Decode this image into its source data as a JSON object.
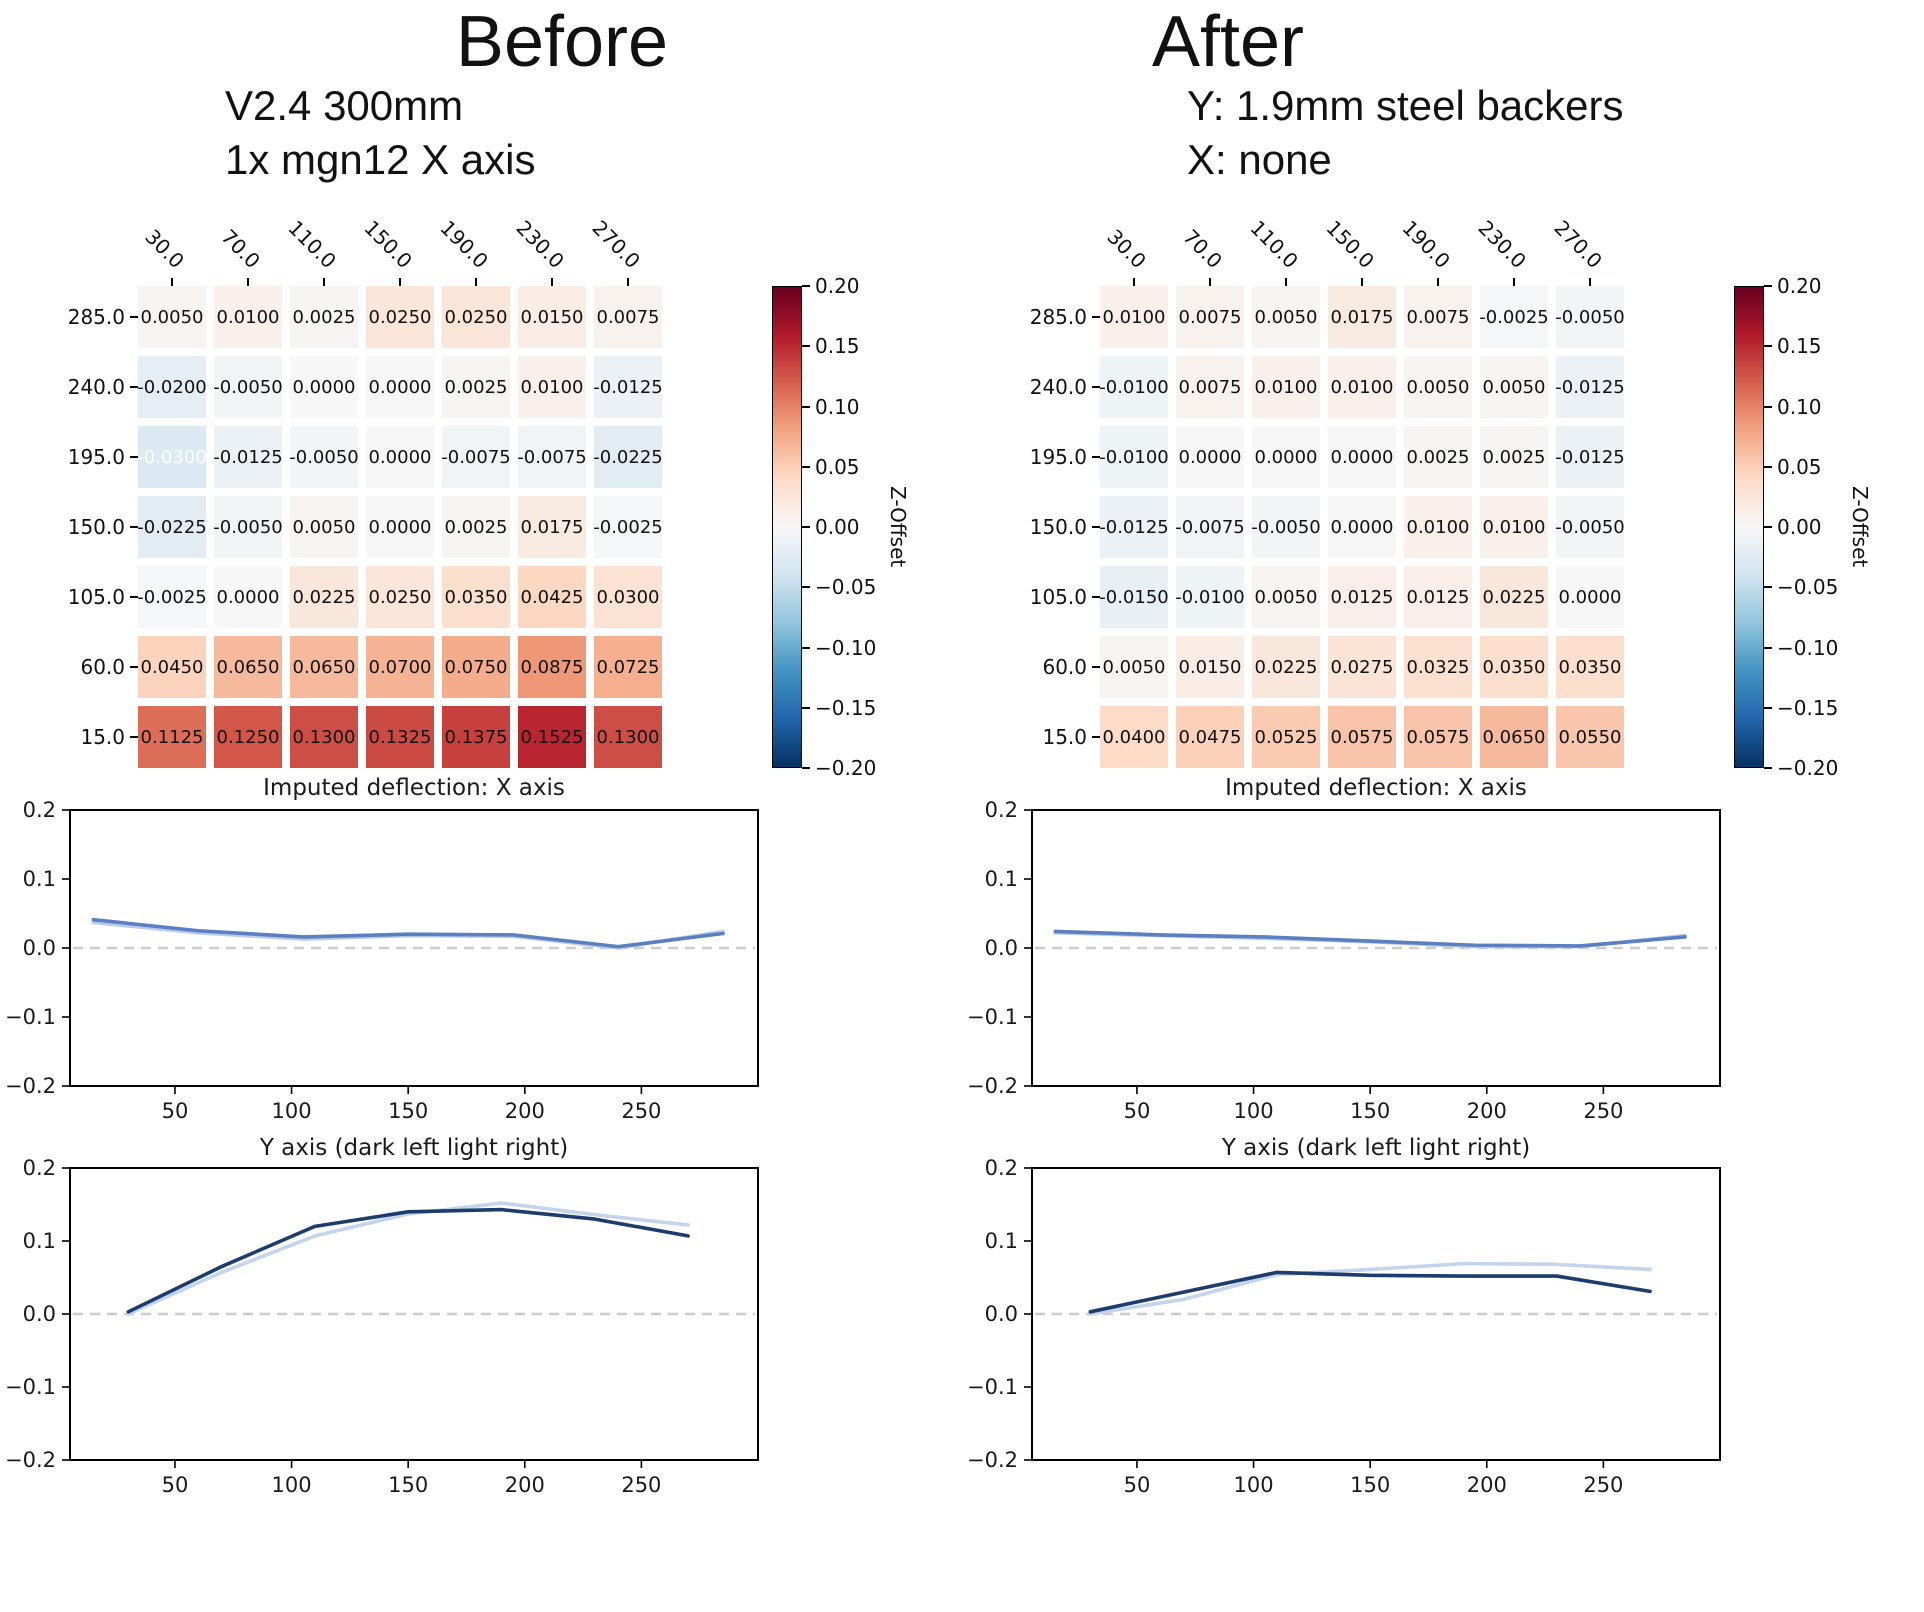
{
  "panels": [
    {
      "title": "Before",
      "subtitle_lines": [
        "V2.4 300mm",
        "1x mgn12 X axis"
      ]
    },
    {
      "title": "After",
      "subtitle_lines": [
        "Y: 1.9mm steel backers",
        "X: none"
      ]
    }
  ],
  "colorbar": {
    "label": "Z-Offset",
    "ticks": [
      "0.20",
      "0.15",
      "0.10",
      "0.05",
      "0.00",
      "−0.05",
      "−0.10",
      "−0.15",
      "−0.20"
    ],
    "vmin": -0.2,
    "vmax": 0.2,
    "palette": [
      "#053061",
      "#2166ac",
      "#4393c3",
      "#92c5de",
      "#d1e5f0",
      "#f7f7f7",
      "#fddbc7",
      "#f4a582",
      "#d6604d",
      "#b2182b",
      "#67001f"
    ]
  },
  "axes": {
    "line_yticks": [
      "0.2",
      "0.1",
      "0.0",
      "−0.1",
      "−0.2"
    ],
    "line_xticks": [
      50,
      100,
      150,
      200,
      250
    ],
    "ylim": [
      -0.2,
      0.2
    ]
  },
  "chart_data": [
    {
      "type": "heatmap",
      "panel": "Before",
      "x_labels": [
        "30.0",
        "70.0",
        "110.0",
        "150.0",
        "190.0",
        "230.0",
        "270.0"
      ],
      "y_labels": [
        "285.0",
        "240.0",
        "195.0",
        "150.0",
        "105.0",
        "60.0",
        "15.0"
      ],
      "values": [
        [
          0.005,
          0.01,
          0.0025,
          0.025,
          0.025,
          0.015,
          0.0075
        ],
        [
          -0.02,
          -0.005,
          0.0,
          0.0,
          0.0025,
          0.01,
          -0.0125
        ],
        [
          -0.03,
          -0.0125,
          -0.005,
          0.0,
          -0.0075,
          -0.0075,
          -0.0225
        ],
        [
          -0.0225,
          -0.005,
          0.005,
          0.0,
          0.0025,
          0.0175,
          -0.0025
        ],
        [
          -0.0025,
          0.0,
          0.0225,
          0.025,
          0.035,
          0.0425,
          0.03
        ],
        [
          0.045,
          0.065,
          0.065,
          0.07,
          0.075,
          0.0875,
          0.0725
        ],
        [
          0.1125,
          0.125,
          0.13,
          0.1325,
          0.1375,
          0.1525,
          0.13
        ]
      ],
      "ylabel": "Z-Offset",
      "vmin": -0.2,
      "vmax": 0.2
    },
    {
      "type": "heatmap",
      "panel": "After",
      "x_labels": [
        "30.0",
        "70.0",
        "110.0",
        "150.0",
        "190.0",
        "230.0",
        "270.0"
      ],
      "y_labels": [
        "285.0",
        "240.0",
        "195.0",
        "150.0",
        "105.0",
        "60.0",
        "15.0"
      ],
      "values": [
        [
          0.01,
          0.0075,
          0.005,
          0.0175,
          0.0075,
          -0.0025,
          -0.005
        ],
        [
          -0.01,
          0.0075,
          0.01,
          0.01,
          0.005,
          0.005,
          -0.0125
        ],
        [
          -0.01,
          0.0,
          0.0,
          0.0,
          0.0025,
          0.0025,
          -0.0125
        ],
        [
          -0.0125,
          -0.0075,
          -0.005,
          0.0,
          0.01,
          0.01,
          -0.005
        ],
        [
          -0.015,
          -0.01,
          0.005,
          0.0125,
          0.0125,
          0.0225,
          0.0
        ],
        [
          0.005,
          0.015,
          0.0225,
          0.0275,
          0.0325,
          0.035,
          0.035
        ],
        [
          0.04,
          0.0475,
          0.0525,
          0.0575,
          0.0575,
          0.065,
          0.055
        ]
      ],
      "ylabel": "Z-Offset",
      "vmin": -0.2,
      "vmax": 0.2
    },
    {
      "type": "line",
      "panel": "Before",
      "title": "Imputed deflection: X axis",
      "x": [
        15,
        60,
        105,
        150,
        195,
        240,
        285
      ],
      "series": [
        {
          "name": "light",
          "values": [
            0.037,
            0.022,
            0.013,
            0.018,
            0.017,
            0.0,
            0.024
          ]
        },
        {
          "name": "dark",
          "values": [
            0.041,
            0.025,
            0.016,
            0.02,
            0.019,
            0.002,
            0.021
          ]
        }
      ],
      "colors": {
        "dark": "#5b7fc0",
        "light": "#b9cbe8"
      },
      "ylim": [
        -0.2,
        0.2
      ],
      "xticks": [
        50,
        100,
        150,
        200,
        250
      ],
      "zero_line": "dashed"
    },
    {
      "type": "line",
      "panel": "Before",
      "title": "Y axis (dark left light right)",
      "x": [
        30,
        70,
        110,
        150,
        190,
        230,
        270
      ],
      "series": [
        {
          "name": "light",
          "values": [
            0.0,
            0.057,
            0.107,
            0.137,
            0.152,
            0.136,
            0.122
          ]
        },
        {
          "name": "dark",
          "values": [
            0.003,
            0.065,
            0.12,
            0.14,
            0.143,
            0.13,
            0.107
          ]
        }
      ],
      "colors": {
        "dark": "#1d3c6d",
        "light": "#c4d4ec"
      },
      "ylim": [
        -0.2,
        0.2
      ],
      "xticks": [
        50,
        100,
        150,
        200,
        250
      ],
      "zero_line": "dashed"
    },
    {
      "type": "line",
      "panel": "After",
      "title": "Imputed deflection: X axis",
      "x": [
        15,
        60,
        105,
        150,
        195,
        240,
        285
      ],
      "series": [
        {
          "name": "light",
          "values": [
            0.022,
            0.018,
            0.014,
            0.009,
            0.002,
            0.002,
            0.018
          ]
        },
        {
          "name": "dark",
          "values": [
            0.024,
            0.019,
            0.016,
            0.01,
            0.004,
            0.003,
            0.016
          ]
        }
      ],
      "colors": {
        "dark": "#5b7fc0",
        "light": "#b9cbe8"
      },
      "ylim": [
        -0.2,
        0.2
      ],
      "xticks": [
        50,
        100,
        150,
        200,
        250
      ],
      "zero_line": "dashed"
    },
    {
      "type": "line",
      "panel": "After",
      "title": "Y axis (dark left light right)",
      "x": [
        30,
        70,
        110,
        150,
        190,
        230,
        270
      ],
      "series": [
        {
          "name": "light",
          "values": [
            0.0,
            0.02,
            0.054,
            0.061,
            0.069,
            0.068,
            0.061
          ]
        },
        {
          "name": "dark",
          "values": [
            0.003,
            0.03,
            0.057,
            0.053,
            0.052,
            0.052,
            0.031
          ]
        }
      ],
      "colors": {
        "dark": "#1d3c6d",
        "light": "#c4d4ec"
      },
      "ylim": [
        -0.2,
        0.2
      ],
      "xticks": [
        50,
        100,
        150,
        200,
        250
      ],
      "zero_line": "dashed"
    }
  ]
}
